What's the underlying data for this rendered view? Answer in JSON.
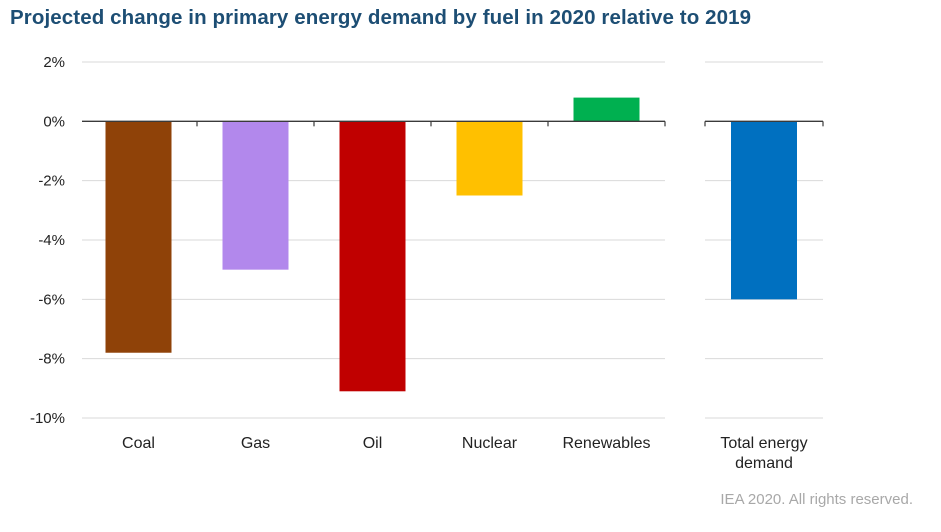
{
  "title": "Projected change in primary energy demand by fuel in 2020 relative to 2019",
  "footer": "IEA 2020. All rights reserved.",
  "chart_data": {
    "type": "bar",
    "title": "Projected change in primary energy demand by fuel in 2020 relative to 2019",
    "xlabel": "",
    "ylabel": "",
    "ylim": [
      -10,
      2
    ],
    "yticks": [
      2,
      0,
      -2,
      -4,
      -6,
      -8,
      -10
    ],
    "ytick_labels": [
      "2%",
      "0%",
      "-2%",
      "-4%",
      "-6%",
      "-8%",
      "-10%"
    ],
    "grid": true,
    "panels": [
      {
        "categories": [
          "Coal",
          "Gas",
          "Oil",
          "Nuclear",
          "Renewables"
        ],
        "values": [
          -7.8,
          -5.0,
          -9.1,
          -2.5,
          0.8
        ],
        "colors": [
          "#8f4208",
          "#b288ec",
          "#c00000",
          "#ffc000",
          "#00b050"
        ]
      },
      {
        "categories": [
          [
            "Total energy",
            "demand"
          ]
        ],
        "values": [
          -6.0
        ],
        "colors": [
          "#0070c0"
        ]
      }
    ]
  }
}
